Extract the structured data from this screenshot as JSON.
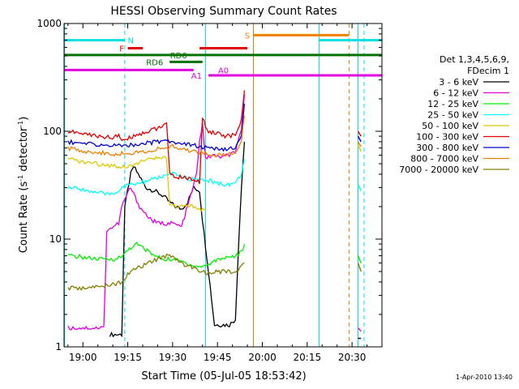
{
  "chart_data": {
    "type": "line",
    "title": "HESSI Observing Summary Count Rates",
    "xlabel": "Start Time (05-Jul-05 18:53:42)",
    "ylabel_main": "Count Rate (s",
    "ylabel_sup1": "-1",
    "ylabel_mid": " detector",
    "ylabel_sup2": "-1",
    "ylabel_end": ")",
    "yscale": "log",
    "ylim": [
      1,
      1000
    ],
    "xlim_minutes": [
      -6.3,
      100
    ],
    "xticks": [
      {
        "label": "19:00",
        "t": 0
      },
      {
        "label": "19:15",
        "t": 15
      },
      {
        "label": "19:30",
        "t": 30
      },
      {
        "label": "19:45",
        "t": 45
      },
      {
        "label": "20:00",
        "t": 60
      },
      {
        "label": "20:15",
        "t": 75
      },
      {
        "label": "20:30",
        "t": 90
      }
    ],
    "yticks": [
      {
        "label": "1",
        "v": 1
      },
      {
        "label": "10",
        "v": 10
      },
      {
        "label": "100",
        "v": 100
      },
      {
        "label": "1000",
        "v": 1000
      }
    ],
    "legend_header": [
      "Det 1,3,4,5,6,9,",
      "FDecim 1"
    ],
    "series": [
      {
        "name": "3 - 6 keV",
        "color": "#000000",
        "points": [
          [
            9,
            1.3
          ],
          [
            13,
            1.3
          ],
          [
            14,
            20
          ],
          [
            16,
            40
          ],
          [
            17,
            47
          ],
          [
            19,
            38
          ],
          [
            21,
            30
          ],
          [
            24,
            28
          ],
          [
            27,
            25
          ],
          [
            29,
            22
          ],
          [
            31,
            20
          ],
          [
            33,
            19
          ],
          [
            35,
            22
          ],
          [
            37,
            30
          ],
          [
            39,
            28
          ],
          [
            40,
            15
          ],
          [
            42,
            5
          ],
          [
            44,
            1.6
          ],
          [
            47,
            1.6
          ],
          [
            49,
            1.6
          ],
          [
            51,
            1.8
          ],
          [
            52,
            8
          ],
          [
            53,
            30
          ],
          [
            54,
            80
          ]
        ]
      },
      {
        "name": "6 - 12 keV",
        "color": "#e000e0",
        "points": [
          [
            -5,
            1.5
          ],
          [
            0,
            1.5
          ],
          [
            5,
            1.5
          ],
          [
            7,
            1.5
          ],
          [
            8,
            12
          ],
          [
            12,
            14
          ],
          [
            13,
            20
          ],
          [
            15,
            27
          ],
          [
            16,
            30
          ],
          [
            17,
            26
          ],
          [
            19,
            20
          ],
          [
            21,
            17
          ],
          [
            23,
            15
          ],
          [
            25,
            14
          ],
          [
            28,
            14
          ],
          [
            30,
            14
          ],
          [
            33,
            13
          ],
          [
            36,
            25
          ],
          [
            38,
            40
          ],
          [
            39,
            80
          ],
          [
            40,
            120
          ],
          [
            41,
            55
          ],
          [
            43,
            60
          ],
          [
            45,
            58
          ],
          [
            47,
            58
          ],
          [
            49,
            60
          ],
          [
            51,
            65
          ],
          [
            53,
            100
          ],
          [
            54,
            220
          ]
        ]
      },
      {
        "name": "12 - 25 keV",
        "color": "#00ee00",
        "points": [
          [
            -5,
            7
          ],
          [
            0,
            6.8
          ],
          [
            5,
            6.5
          ],
          [
            10,
            6.5
          ],
          [
            13,
            6.8
          ],
          [
            15,
            8
          ],
          [
            18,
            9
          ],
          [
            21,
            8
          ],
          [
            24,
            7
          ],
          [
            27,
            6.5
          ],
          [
            30,
            6.5
          ],
          [
            33,
            6.2
          ],
          [
            36,
            5.8
          ],
          [
            39,
            5.5
          ],
          [
            42,
            5.8
          ],
          [
            45,
            6.5
          ],
          [
            48,
            6.8
          ],
          [
            51,
            7
          ],
          [
            53,
            7.5
          ],
          [
            54,
            9
          ]
        ]
      },
      {
        "name": "25 - 50 keV",
        "color": "#00ffff",
        "points": [
          [
            -5,
            30
          ],
          [
            0,
            29
          ],
          [
            4,
            27
          ],
          [
            8,
            26
          ],
          [
            11,
            27
          ],
          [
            13,
            30
          ],
          [
            16,
            32
          ],
          [
            19,
            33
          ],
          [
            22,
            35
          ],
          [
            25,
            37
          ],
          [
            28,
            39
          ],
          [
            30,
            40
          ],
          [
            33,
            38
          ],
          [
            36,
            36
          ],
          [
            39,
            35
          ],
          [
            42,
            35
          ],
          [
            45,
            33
          ],
          [
            48,
            32
          ],
          [
            51,
            33
          ],
          [
            53,
            40
          ],
          [
            54,
            55
          ]
        ]
      },
      {
        "name": "50 - 100 keV",
        "color": "#e0c800",
        "points": [
          [
            -5,
            55
          ],
          [
            0,
            52
          ],
          [
            5,
            50
          ],
          [
            10,
            48
          ],
          [
            13,
            47
          ],
          [
            16,
            48
          ],
          [
            19,
            52
          ],
          [
            23,
            55
          ],
          [
            26,
            57
          ],
          [
            28,
            57
          ],
          [
            29,
            20
          ],
          [
            31,
            20
          ],
          [
            33,
            20
          ],
          [
            35,
            20
          ],
          [
            37,
            20
          ],
          [
            39,
            19
          ],
          [
            41,
            19
          ]
        ]
      },
      {
        "name": "100 - 300 keV",
        "color": "#e00000",
        "points": [
          [
            -5,
            100
          ],
          [
            0,
            95
          ],
          [
            5,
            90
          ],
          [
            10,
            88
          ],
          [
            12,
            90
          ],
          [
            13,
            83
          ],
          [
            16,
            88
          ],
          [
            19,
            95
          ],
          [
            22,
            100
          ],
          [
            25,
            108
          ],
          [
            28,
            115
          ],
          [
            29,
            40
          ],
          [
            31,
            38
          ],
          [
            34,
            37
          ],
          [
            37,
            36
          ],
          [
            39,
            33
          ],
          [
            40,
            130
          ],
          [
            42,
            100
          ],
          [
            45,
            95
          ],
          [
            48,
            90
          ],
          [
            51,
            92
          ],
          [
            53,
            125
          ],
          [
            54,
            240
          ]
        ]
      },
      {
        "name": "300 - 800 keV",
        "color": "#0000d0",
        "points": [
          [
            -5,
            80
          ],
          [
            0,
            77
          ],
          [
            5,
            75
          ],
          [
            10,
            74
          ],
          [
            13,
            73
          ],
          [
            16,
            75
          ],
          [
            19,
            76
          ],
          [
            22,
            78
          ],
          [
            25,
            80
          ],
          [
            28,
            82
          ],
          [
            30,
            80
          ],
          [
            33,
            78
          ],
          [
            36,
            75
          ],
          [
            39,
            72
          ],
          [
            42,
            70
          ],
          [
            45,
            68
          ],
          [
            48,
            67
          ],
          [
            51,
            70
          ],
          [
            53,
            95
          ],
          [
            54,
            180
          ]
        ]
      },
      {
        "name": "800 - 7000 keV",
        "color": "#f08000",
        "points": [
          [
            -5,
            70
          ],
          [
            0,
            66
          ],
          [
            5,
            63
          ],
          [
            10,
            62
          ],
          [
            13,
            62
          ],
          [
            16,
            63
          ],
          [
            19,
            64
          ],
          [
            22,
            66
          ],
          [
            25,
            68
          ],
          [
            28,
            70
          ],
          [
            30,
            72
          ],
          [
            33,
            68
          ],
          [
            36,
            66
          ],
          [
            39,
            64
          ],
          [
            42,
            62
          ],
          [
            45,
            60
          ],
          [
            48,
            60
          ],
          [
            51,
            63
          ],
          [
            53,
            80
          ],
          [
            54,
            140
          ]
        ]
      },
      {
        "name": "7000 - 20000 keV",
        "color": "#808000",
        "points": [
          [
            -5,
            3.5
          ],
          [
            0,
            3.5
          ],
          [
            5,
            3.6
          ],
          [
            10,
            3.8
          ],
          [
            13,
            4
          ],
          [
            16,
            5
          ],
          [
            19,
            5.5
          ],
          [
            22,
            6
          ],
          [
            25,
            6.5
          ],
          [
            28,
            7
          ],
          [
            30,
            7
          ],
          [
            33,
            6
          ],
          [
            36,
            5.5
          ],
          [
            39,
            5
          ],
          [
            42,
            4.8
          ],
          [
            45,
            5
          ],
          [
            48,
            5
          ],
          [
            51,
            5
          ],
          [
            53,
            5.5
          ],
          [
            54,
            6
          ]
        ]
      }
    ],
    "tail_points": [
      {
        "series": "3 - 6 keV",
        "points": [
          [
            92,
            1.2
          ],
          [
            93,
            1.2
          ]
        ]
      },
      {
        "series": "6 - 12 keV",
        "points": [
          [
            92,
            1.5
          ],
          [
            93,
            1.4
          ]
        ]
      },
      {
        "series": "12 - 25 keV",
        "points": [
          [
            92,
            7
          ],
          [
            93,
            6
          ]
        ]
      },
      {
        "series": "25 - 50 keV",
        "points": [
          [
            92,
            32
          ],
          [
            93,
            28
          ]
        ]
      },
      {
        "series": "50 - 100 keV",
        "points": [
          [
            92,
            75
          ],
          [
            93,
            65
          ]
        ]
      },
      {
        "series": "100 - 300 keV",
        "points": [
          [
            92,
            100
          ],
          [
            93,
            90
          ]
        ]
      },
      {
        "series": "300 - 800 keV",
        "points": [
          [
            92,
            90
          ],
          [
            93,
            80
          ]
        ]
      },
      {
        "series": "800 - 7000 keV",
        "points": [
          [
            92,
            80
          ],
          [
            93,
            72
          ]
        ]
      },
      {
        "series": "7000 - 20000 keV",
        "points": [
          [
            92,
            6
          ],
          [
            93,
            5
          ]
        ]
      }
    ],
    "flag_bars": [
      {
        "label": "N",
        "color": "#00e0e0",
        "t0": -6.3,
        "t1": 14,
        "level": 700,
        "label_at": 16
      },
      {
        "label": "N",
        "color": "#00e0e0",
        "t0": 79,
        "t1": 100,
        "level": 700,
        "label_at": null
      },
      {
        "label": "F",
        "color": "#e00000",
        "t0": 15,
        "t1": 20,
        "level": 590,
        "label_at": 13
      },
      {
        "label": "F",
        "color": "#e00000",
        "t0": 39,
        "t1": 55,
        "level": 590,
        "label_at": null
      },
      {
        "label": "S",
        "color": "#f08000",
        "t0": 57,
        "t1": 89,
        "level": 780,
        "label_at": 55
      },
      {
        "label": "RD0",
        "color": "#007000",
        "t0": -6.3,
        "t1": 100,
        "level": 510,
        "label_at": 32
      },
      {
        "label": "RD6",
        "color": "#007000",
        "t0": 29,
        "t1": 40,
        "level": 440,
        "label_at": 24
      },
      {
        "label": "A0",
        "color": "#e000e0",
        "t0": -6.3,
        "t1": 37,
        "level": 370,
        "label_at": 47
      },
      {
        "label": "A1",
        "color": "#e000e0",
        "t0": 42,
        "t1": 100,
        "level": 330,
        "label_at": 38
      }
    ],
    "vlines": [
      {
        "t": -6.1,
        "color": "#00e0e0",
        "dash": false
      },
      {
        "t": 14,
        "color": "#00e0e0",
        "dash": true
      },
      {
        "t": 41,
        "color": "#00e0e0",
        "dash": false
      },
      {
        "t": 57,
        "color": "#c08000",
        "dash": false
      },
      {
        "t": 79,
        "color": "#00e0e0",
        "dash": false
      },
      {
        "t": 89,
        "color": "#f08000",
        "dash": true
      },
      {
        "t": 92,
        "color": "#00e0e0",
        "dash": false
      },
      {
        "t": 94,
        "color": "#00e0e0",
        "dash": true
      }
    ]
  },
  "footer": {
    "timestamp": "1-Apr-2010 13:40"
  }
}
